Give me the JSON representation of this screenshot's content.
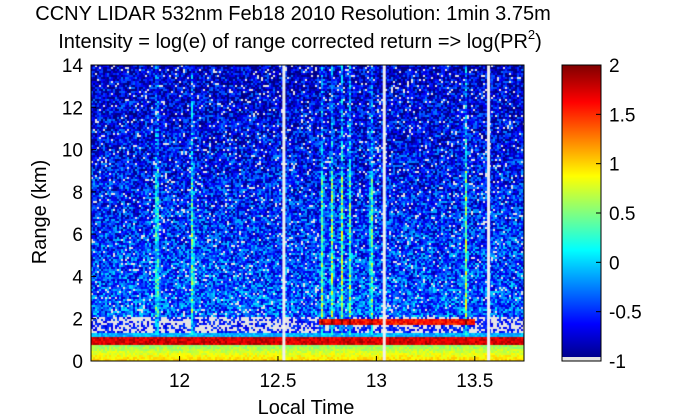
{
  "chart_data": {
    "type": "heatmap",
    "title_line1": "CCNY LIDAR 532nm Feb18 2010 Resolution: 1min 3.75m",
    "title_line2_main": "Intensity = log(e) of range corrected return => log(PR",
    "title_line2_sup": "2",
    "title_line2_end": ")",
    "xlabel": "Local Time",
    "ylabel": "Range (km)",
    "xlim": [
      11.55,
      13.75
    ],
    "ylim": [
      0,
      14
    ],
    "xticks": [
      12,
      12.5,
      13,
      13.5
    ],
    "xtick_labels": [
      "12",
      "12.5",
      "13",
      "13.5"
    ],
    "yticks": [
      0,
      2,
      4,
      6,
      8,
      10,
      12,
      14
    ],
    "ytick_labels": [
      "0",
      "2",
      "4",
      "6",
      "8",
      "10",
      "12",
      "14"
    ],
    "colorbar": {
      "range": [
        -1,
        2
      ],
      "ticks": [
        -1,
        -0.5,
        0,
        0.5,
        1,
        1.5,
        2
      ],
      "tick_labels": [
        "-1",
        "-0.5",
        "0",
        "0.5",
        "1",
        "1.5",
        "2"
      ],
      "colormap": "jet"
    },
    "features": {
      "boundary_layer_range_km": [
        0.8,
        1.2
      ],
      "surface_layer_range_km": [
        0,
        0.8
      ],
      "gap_range_km": [
        1.3,
        2.1
      ],
      "data_gap_times": [
        12.53,
        13.04,
        13.57
      ],
      "cloud_columns_times": [
        11.88,
        12.06,
        12.72,
        12.77,
        12.82,
        12.86,
        12.97,
        13.45
      ]
    }
  }
}
